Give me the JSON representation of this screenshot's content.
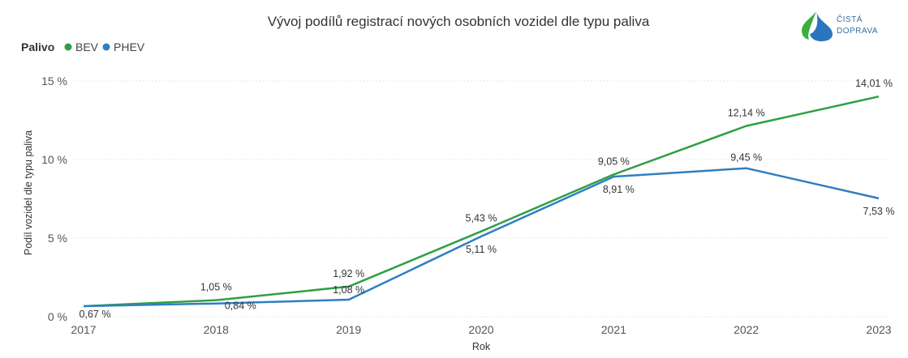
{
  "chart_data": {
    "type": "line",
    "title": "Vývoj podílů registrací nových osobních vozidel dle typu paliva",
    "xlabel": "Rok",
    "ylabel": "Podíl vozidel dle typu paliva",
    "legend_title": "Palivo",
    "legend_position": "top-left",
    "categories": [
      "2017",
      "2018",
      "2019",
      "2020",
      "2021",
      "2022",
      "2023"
    ],
    "ylim": [
      0,
      15
    ],
    "yticks": [
      "0 %",
      "5 %",
      "10 %",
      "15 %"
    ],
    "grid": true,
    "series": [
      {
        "name": "BEV",
        "color": "#2ea043",
        "values": [
          0.67,
          1.05,
          1.92,
          5.43,
          9.05,
          12.14,
          14.01
        ],
        "labels": [
          "",
          "1,05 %",
          "1,92 %",
          "5,43 %",
          "9,05 %",
          "12,14 %",
          "14,01 %"
        ]
      },
      {
        "name": "PHEV",
        "color": "#2e7fc2",
        "values": [
          0.67,
          0.84,
          1.08,
          5.11,
          8.91,
          9.45,
          7.53
        ],
        "labels": [
          "0,67 %",
          "0,84 %",
          "1,08 %",
          "5,11 %",
          "8,91 %",
          "9,45 %",
          "7,53 %"
        ]
      }
    ]
  },
  "logo": {
    "line1": "ČISTÁ",
    "line2": "DOPRAVA",
    "green": "#3cae3f",
    "blue": "#2b74c0"
  }
}
